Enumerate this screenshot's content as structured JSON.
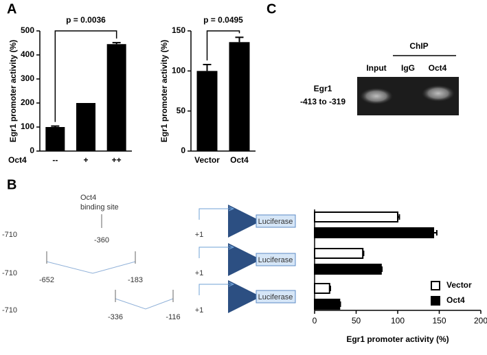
{
  "panels": {
    "a": "A",
    "b": "B",
    "c": "C"
  },
  "chart_data": [
    {
      "type": "bar",
      "ylabel": "Egr1 promoter activity (%)",
      "xlabel": "Oct4",
      "categories": [
        "--",
        "+",
        "++"
      ],
      "values": [
        100,
        200,
        445
      ],
      "errors": [
        4,
        0,
        6
      ],
      "color": "#000000",
      "ylim": [
        0,
        500
      ],
      "yticks": [
        0,
        100,
        200,
        300,
        400,
        500
      ],
      "annotation": "p = 0.0036"
    },
    {
      "type": "bar",
      "ylabel": "Egr1 promoter activity (%)",
      "categories": [
        "Vector",
        "Oct4"
      ],
      "values": [
        100,
        136
      ],
      "errors": [
        8,
        6
      ],
      "color": "#000000",
      "ylim": [
        0,
        150
      ],
      "yticks": [
        0,
        50,
        100,
        150
      ],
      "annotation": "p = 0.0495"
    },
    {
      "type": "hbar",
      "xlabel": "Egr1 promoter activity (%)",
      "series": [
        {
          "name": "Vector",
          "color": "#ffffff",
          "values": [
            100,
            58,
            18
          ],
          "errors": [
            2,
            1,
            1
          ]
        },
        {
          "name": "Oct4",
          "color": "#000000",
          "values": [
            143,
            80,
            30
          ],
          "errors": [
            4,
            1,
            1
          ]
        }
      ],
      "xlim": [
        0,
        200
      ],
      "xticks": [
        0,
        50,
        100,
        150,
        200
      ],
      "legend": "lower-right"
    }
  ],
  "gel": {
    "group": "ChIP",
    "lanes": [
      "Input",
      "IgG",
      "Oct4"
    ],
    "target": [
      "Egr1",
      "-413 to -319"
    ]
  },
  "diagram": {
    "site": [
      "Oct4",
      "binding site"
    ],
    "reporter": "Luciferase",
    "rows": [
      [
        "-710",
        "-360",
        "+1"
      ],
      [
        "-710",
        "-652",
        "-183",
        "+1"
      ],
      [
        "-710",
        "-336",
        "-116",
        "+1"
      ]
    ]
  }
}
